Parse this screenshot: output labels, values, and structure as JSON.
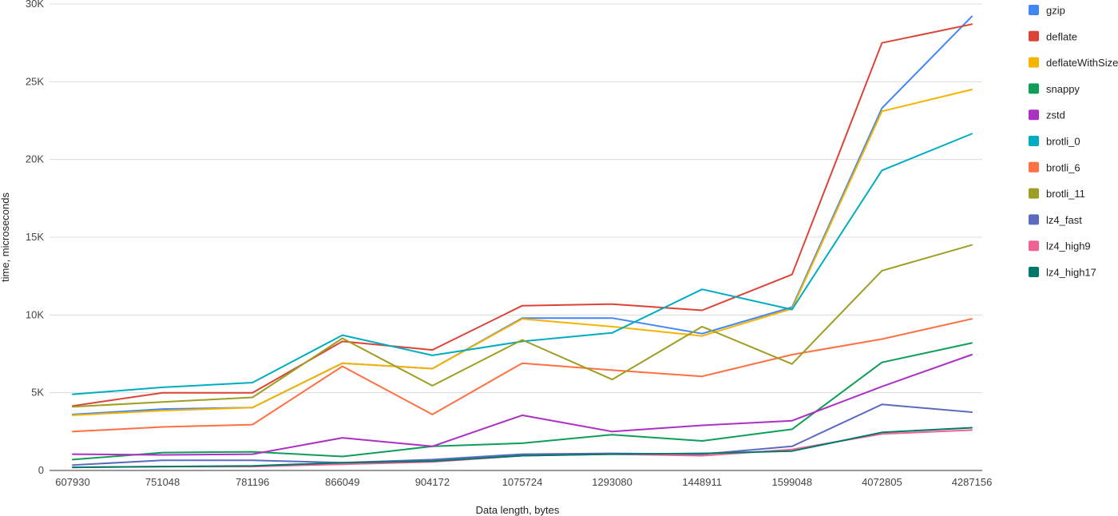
{
  "chart_data": {
    "type": "line",
    "title": "",
    "xlabel": "Data length, bytes",
    "ylabel": "time, microseconds",
    "categories": [
      "607930",
      "751048",
      "781196",
      "866049",
      "904172",
      "1075724",
      "1293080",
      "1448911",
      "1599048",
      "4072805",
      "4287156"
    ],
    "ylim": [
      0,
      30000
    ],
    "yticks": [
      0,
      5000,
      10000,
      15000,
      20000,
      25000,
      30000
    ],
    "ytick_labels": [
      "0",
      "5K",
      "10K",
      "15K",
      "20K",
      "25K",
      "30K"
    ],
    "grid": true,
    "legend_position": "right",
    "series": [
      {
        "name": "gzip",
        "color": "#4285f4",
        "values": [
          3600,
          3950,
          4050,
          6900,
          6550,
          9800,
          9800,
          8800,
          10500,
          23300,
          29200
        ]
      },
      {
        "name": "deflate",
        "color": "#db4437",
        "values": [
          4150,
          5000,
          5000,
          8300,
          7750,
          10600,
          10700,
          10300,
          12600,
          27500,
          28700
        ]
      },
      {
        "name": "deflateWithSize",
        "color": "#f4b400",
        "values": [
          3550,
          3850,
          4050,
          6900,
          6550,
          9750,
          9250,
          8650,
          10400,
          23100,
          24500
        ]
      },
      {
        "name": "snappy",
        "color": "#0f9d58",
        "values": [
          700,
          1150,
          1200,
          900,
          1550,
          1750,
          2300,
          1900,
          2650,
          6950,
          8200
        ]
      },
      {
        "name": "zstd",
        "color": "#ab30c4",
        "values": [
          1050,
          1000,
          1050,
          2100,
          1550,
          3550,
          2500,
          2900,
          3200,
          5400,
          7450
        ]
      },
      {
        "name": "brotli_0",
        "color": "#00acc1",
        "values": [
          4900,
          5350,
          5650,
          8700,
          7400,
          8300,
          8850,
          11650,
          10350,
          19300,
          21650
        ]
      },
      {
        "name": "brotli_6",
        "color": "#ff7043",
        "values": [
          2500,
          2800,
          2950,
          6700,
          3600,
          6900,
          6450,
          6050,
          7450,
          8450,
          9750
        ]
      },
      {
        "name": "brotli_11",
        "color": "#9e9d24",
        "values": [
          4100,
          4400,
          4700,
          8500,
          5450,
          8400,
          5850,
          9250,
          6850,
          12850,
          14500
        ]
      },
      {
        "name": "lz4_fast",
        "color": "#5c6bc0",
        "values": [
          350,
          650,
          650,
          500,
          700,
          1050,
          1100,
          1050,
          1550,
          4250,
          3750
        ]
      },
      {
        "name": "lz4_high9",
        "color": "#f06292",
        "values": [
          200,
          250,
          250,
          400,
          550,
          950,
          1050,
          950,
          1350,
          2350,
          2600
        ]
      },
      {
        "name": "lz4_high17",
        "color": "#00796b",
        "values": [
          200,
          250,
          300,
          500,
          600,
          950,
          1050,
          1100,
          1250,
          2450,
          2750
        ]
      }
    ]
  }
}
